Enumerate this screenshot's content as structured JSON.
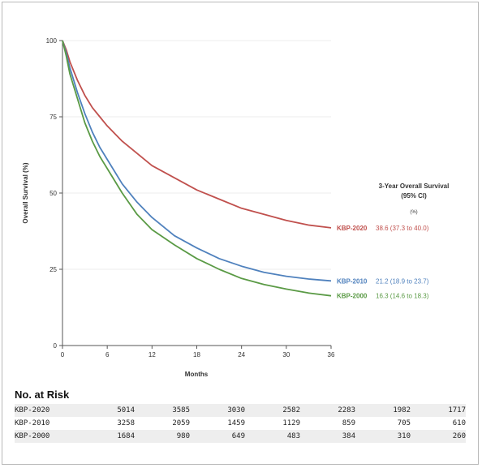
{
  "chart_data": {
    "type": "line",
    "xlabel": "Months",
    "ylabel": "Overall Survival (%)",
    "x_ticks": [
      0,
      6,
      12,
      18,
      24,
      30,
      36
    ],
    "y_ticks": [
      0,
      25,
      50,
      75,
      100
    ],
    "xlim": [
      0,
      36
    ],
    "ylim": [
      0,
      100
    ],
    "legend": {
      "title": "3-Year Overall Survival",
      "subtitle": "(95% CI)",
      "unit": "(%)"
    },
    "series": [
      {
        "name": "KBP-2020",
        "color": "#c0504d",
        "estimate": "38.6 (37.3 to 40.0)",
        "x": [
          0,
          0.5,
          1,
          2,
          3,
          4,
          5,
          6,
          8,
          10,
          12,
          15,
          18,
          21,
          24,
          27,
          30,
          33,
          36
        ],
        "y": [
          100,
          97,
          93,
          87,
          82,
          78,
          75,
          72,
          67,
          63,
          59,
          55,
          51,
          48,
          45,
          43,
          41,
          39.5,
          38.6
        ]
      },
      {
        "name": "KBP-2010",
        "color": "#4f81bd",
        "estimate": "21.2 (18.9 to 23.7)",
        "x": [
          0,
          0.5,
          1,
          2,
          3,
          4,
          5,
          6,
          8,
          10,
          12,
          15,
          18,
          21,
          24,
          27,
          30,
          33,
          36
        ],
        "y": [
          100,
          96,
          91,
          83,
          76,
          70,
          65,
          61,
          53,
          47,
          42,
          36,
          32,
          28.5,
          26,
          24,
          22.7,
          21.8,
          21.2
        ]
      },
      {
        "name": "KBP-2000",
        "color": "#5a9a45",
        "estimate": "16.3 (14.6 to 18.3)",
        "x": [
          0,
          0.5,
          1,
          2,
          3,
          4,
          5,
          6,
          8,
          10,
          12,
          15,
          18,
          21,
          24,
          27,
          30,
          33,
          36
        ],
        "y": [
          100,
          95,
          89,
          81,
          73,
          67,
          62,
          58,
          50,
          43,
          38,
          33,
          28.5,
          25,
          22,
          20,
          18.5,
          17.2,
          16.3
        ]
      }
    ]
  },
  "risk_table": {
    "title": "No. at Risk",
    "rows": [
      {
        "label": "KBP-2020",
        "values": [
          "5014",
          "3585",
          "3030",
          "2582",
          "2283",
          "1982",
          "1717"
        ]
      },
      {
        "label": "KBP-2010",
        "values": [
          "3258",
          "2059",
          "1459",
          "1129",
          "859",
          "705",
          "610"
        ]
      },
      {
        "label": "KBP-2000",
        "values": [
          "1684",
          "980",
          "649",
          "483",
          "384",
          "310",
          "260"
        ]
      }
    ]
  }
}
